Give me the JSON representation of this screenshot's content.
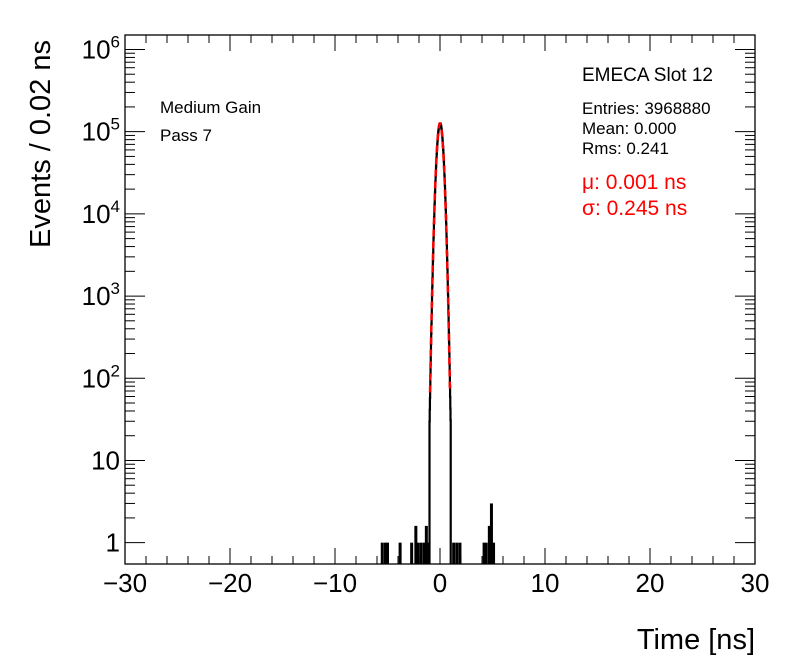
{
  "chart_data": {
    "type": "histogram",
    "xlabel": "Time [ns]",
    "ylabel": "Events / 0.02 ns",
    "xlim": [
      -30,
      30
    ],
    "ylim": [
      0.55,
      1500000
    ],
    "ylog": true,
    "grid": false,
    "x_ticks": [
      "−30",
      "−20",
      "−10",
      "0",
      "10",
      "20",
      "30"
    ],
    "x_tick_values": [
      -30,
      -20,
      -10,
      0,
      10,
      20,
      30
    ],
    "y_ticks": [
      {
        "value": 1,
        "base": "1",
        "exp": ""
      },
      {
        "value": 10,
        "base": "10",
        "exp": ""
      },
      {
        "value": 100,
        "base": "10",
        "exp": "2"
      },
      {
        "value": 1000,
        "base": "10",
        "exp": "3"
      },
      {
        "value": 10000,
        "base": "10",
        "exp": "4"
      },
      {
        "value": 100000,
        "base": "10",
        "exp": "5"
      },
      {
        "value": 1000000,
        "base": "10",
        "exp": "6"
      }
    ],
    "annotations": [
      "Medium Gain",
      "Pass 7"
    ],
    "stats": {
      "title": "EMECA Slot 12",
      "entries": "Entries: 3968880",
      "mean": "Mean: 0.000",
      "rms": "Rms: 0.241"
    },
    "fit": {
      "mu_label": "μ: 0.001 ns",
      "sigma_label": "σ: 0.245 ns",
      "mu": 0.001,
      "sigma": 0.245,
      "peak": 126000,
      "color": "#ff0000"
    },
    "outlier_bins": [
      {
        "x": -5.5,
        "y": 1
      },
      {
        "x": -5.2,
        "y": 1
      },
      {
        "x": -5.0,
        "y": 1
      },
      {
        "x": -3.8,
        "y": 1
      },
      {
        "x": -2.7,
        "y": 1
      },
      {
        "x": -2.3,
        "y": 1.6
      },
      {
        "x": -2.1,
        "y": 1
      },
      {
        "x": -1.8,
        "y": 1
      },
      {
        "x": -1.5,
        "y": 1
      },
      {
        "x": -1.3,
        "y": 1.6
      },
      {
        "x": -1.1,
        "y": 1
      },
      {
        "x": 1.3,
        "y": 1
      },
      {
        "x": 1.6,
        "y": 1
      },
      {
        "x": 1.9,
        "y": 1
      },
      {
        "x": 4.2,
        "y": 1
      },
      {
        "x": 4.4,
        "y": 1
      },
      {
        "x": 4.7,
        "y": 1.6
      },
      {
        "x": 4.9,
        "y": 3
      },
      {
        "x": 5.1,
        "y": 1
      }
    ],
    "hist_color": "#000000"
  }
}
